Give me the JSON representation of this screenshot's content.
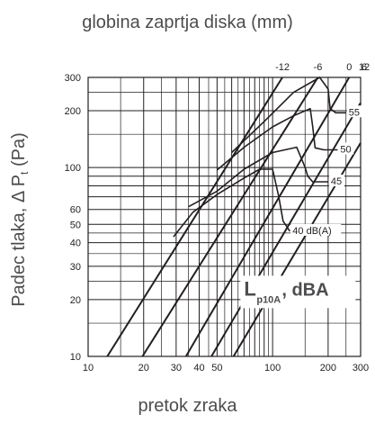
{
  "chart_data": {
    "type": "line",
    "title": "globina zaprtja diska (mm)",
    "xlabel": "pretok zraka",
    "ylabel": "Padec tlaka, Δ P",
    "ylabel_sub": "t",
    "ylabel_unit": "(Pa)",
    "x_scale": "log",
    "y_scale": "log",
    "xlim": [
      10,
      300
    ],
    "ylim": [
      10,
      300
    ],
    "x_tick_labels": [
      "10",
      "20",
      "30",
      "40",
      "50",
      "100",
      "200",
      "300"
    ],
    "y_tick_labels": [
      "10",
      "20",
      "30",
      "40",
      "50",
      "60",
      "100",
      "200",
      "300"
    ],
    "top_tick_labels": [
      "-12",
      "-6",
      "0",
      "6",
      "12"
    ],
    "overlay_label_main": "L",
    "overlay_label_sub": "p10A",
    "overlay_label_rest": ", dBA",
    "sound_level_labels": [
      "40 dB(A)",
      "45",
      "50",
      "55"
    ],
    "series": [
      {
        "name": "-12",
        "x": [
          12.7,
          113
        ],
        "y": [
          10,
          300
        ]
      },
      {
        "name": "-6",
        "x": [
          19.7,
          176
        ],
        "y": [
          10,
          300
        ]
      },
      {
        "name": "0",
        "x": [
          33.9,
          260
        ],
        "y": [
          10,
          300
        ]
      },
      {
        "name": "6",
        "x": [
          46.6,
          300
        ],
        "y": [
          10,
          220
        ]
      },
      {
        "name": "12",
        "x": [
          61.4,
          300
        ],
        "y": [
          10,
          135
        ]
      }
    ],
    "sound_curves": [
      {
        "name": "40 dB(A)",
        "x": [
          29,
          37,
          50,
          70,
          85,
          100,
          108,
          114,
          124
        ],
        "y": [
          43,
          58,
          72,
          88,
          98,
          98,
          70,
          52,
          46
        ]
      },
      {
        "name": "45",
        "x": [
          35,
          50,
          70,
          100,
          135,
          150,
          155,
          165,
          200
        ],
        "y": [
          62,
          75,
          98,
          120,
          128,
          100,
          90,
          84,
          84
        ]
      },
      {
        "name": "50",
        "x": [
          50,
          70,
          100,
          130,
          160,
          165,
          170,
          190,
          225
        ],
        "y": [
          97,
          128,
          164,
          188,
          205,
          165,
          127,
          124,
          124
        ]
      },
      {
        "name": "55",
        "x": [
          60,
          90,
          130,
          180,
          200,
          205,
          220,
          250
        ],
        "y": [
          120,
          175,
          250,
          300,
          260,
          205,
          195,
          195
        ]
      }
    ]
  }
}
